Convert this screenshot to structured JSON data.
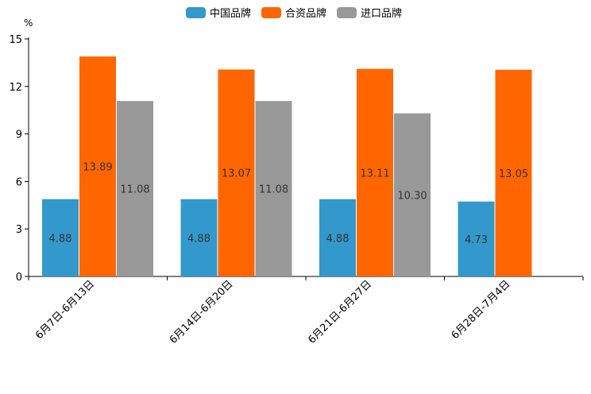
{
  "chart_data": {
    "type": "bar",
    "unit": "%",
    "categories": [
      "6月7日-6月13日",
      "6月14日-6月20日",
      "6月21日-6月27日",
      "6月28日-7月4日"
    ],
    "series": [
      {
        "name": "中国品牌",
        "color": "#3399cc",
        "values": [
          4.88,
          4.88,
          4.88,
          4.73
        ],
        "labels": [
          "4.88",
          "4.88",
          "4.88",
          "4.73"
        ]
      },
      {
        "name": "合资品牌",
        "color": "#ff6600",
        "values": [
          13.89,
          13.07,
          13.11,
          13.05
        ],
        "labels": [
          "13.89",
          "13.07",
          "13.11",
          "13.05"
        ]
      },
      {
        "name": "进口品牌",
        "color": "#999999",
        "values": [
          11.08,
          11.08,
          10.3,
          null
        ],
        "labels": [
          "11.08",
          "11.08",
          "10.30",
          ""
        ]
      }
    ],
    "yticks": [
      0,
      3,
      6,
      9,
      12,
      15
    ],
    "ylim": [
      0,
      15
    ],
    "legend_position": "top-center",
    "grid": false
  }
}
